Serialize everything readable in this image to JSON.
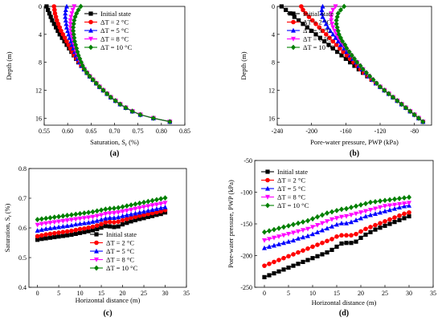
{
  "chart_data": [
    {
      "type": "line",
      "panel": "a",
      "caption": "(a)",
      "xlabel": "Saturation, S",
      "xlabel_sub": "r",
      "xlabel_tail": " (%)",
      "ylabel": "Depth (m)",
      "xlim": [
        0.55,
        0.85
      ],
      "ylim": [
        0,
        17
      ],
      "y_inverted": true,
      "x_ticks": [
        "0.55",
        "0.60",
        "0.65",
        "0.70",
        "0.75",
        "0.80",
        "0.85"
      ],
      "y_ticks": [
        "0",
        "4",
        "8",
        "12",
        "16"
      ],
      "legend_position": "top-right",
      "y": [
        0,
        0.5,
        1,
        1.5,
        2,
        2.5,
        3,
        3.5,
        4,
        4.5,
        5,
        5.5,
        6,
        6.5,
        7,
        7.5,
        8,
        8.5,
        9,
        9.5,
        10,
        10.5,
        11,
        11.5,
        12,
        12.5,
        13,
        13.5,
        14,
        14.5,
        15,
        15.5,
        16,
        16.5
      ],
      "series": [
        {
          "name": "Initial state",
          "marker": "square",
          "color": "#000000",
          "values": [
            0.555,
            0.558,
            0.561,
            0.564,
            0.567,
            0.571,
            0.575,
            0.579,
            0.583,
            0.588,
            0.593,
            0.598,
            0.603,
            0.608,
            0.613,
            0.618,
            0.623,
            0.629,
            0.635,
            0.641,
            0.647,
            0.654,
            0.661,
            0.668,
            0.676,
            0.684,
            0.692,
            0.702,
            0.712,
            0.724,
            0.738,
            0.755,
            0.783,
            0.818
          ]
        },
        {
          "name": "ΔT = 2 °C",
          "marker": "circle",
          "color": "#ff0000",
          "values": [
            0.571,
            0.572,
            0.573,
            0.575,
            0.577,
            0.58,
            0.583,
            0.586,
            0.59,
            0.594,
            0.598,
            0.602,
            0.606,
            0.61,
            0.614,
            0.619,
            0.624,
            0.629,
            0.635,
            0.641,
            0.647,
            0.654,
            0.661,
            0.668,
            0.676,
            0.684,
            0.692,
            0.702,
            0.712,
            0.724,
            0.738,
            0.755,
            0.783,
            0.818
          ]
        },
        {
          "name": "ΔT = 5 °C",
          "marker": "triangle-up",
          "color": "#0000ff",
          "values": [
            0.598,
            0.596,
            0.595,
            0.595,
            0.596,
            0.597,
            0.598,
            0.6,
            0.602,
            0.604,
            0.607,
            0.609,
            0.612,
            0.615,
            0.618,
            0.621,
            0.625,
            0.63,
            0.635,
            0.641,
            0.647,
            0.654,
            0.661,
            0.668,
            0.676,
            0.684,
            0.692,
            0.702,
            0.712,
            0.724,
            0.738,
            0.755,
            0.783,
            0.818
          ]
        },
        {
          "name": "ΔT = 8 °C",
          "marker": "triangle-down",
          "color": "#ff00ff",
          "values": [
            0.614,
            0.611,
            0.609,
            0.607,
            0.606,
            0.606,
            0.606,
            0.607,
            0.608,
            0.61,
            0.612,
            0.614,
            0.616,
            0.618,
            0.621,
            0.624,
            0.627,
            0.631,
            0.636,
            0.641,
            0.647,
            0.654,
            0.661,
            0.668,
            0.676,
            0.684,
            0.692,
            0.702,
            0.712,
            0.724,
            0.738,
            0.755,
            0.783,
            0.818
          ]
        },
        {
          "name": "ΔT = 10 °C",
          "marker": "diamond",
          "color": "#008000",
          "values": [
            0.628,
            0.623,
            0.619,
            0.616,
            0.614,
            0.613,
            0.612,
            0.612,
            0.613,
            0.614,
            0.615,
            0.617,
            0.619,
            0.621,
            0.623,
            0.626,
            0.629,
            0.632,
            0.636,
            0.641,
            0.647,
            0.654,
            0.661,
            0.668,
            0.676,
            0.684,
            0.692,
            0.702,
            0.712,
            0.724,
            0.738,
            0.755,
            0.783,
            0.818
          ]
        }
      ]
    },
    {
      "type": "line",
      "panel": "b",
      "caption": "(b)",
      "xlabel": "Pore-water pressure, PWP (kPa)",
      "ylabel": "Depth (m)",
      "xlim": [
        -240,
        -60
      ],
      "ylim": [
        0,
        17
      ],
      "y_inverted": true,
      "x_ticks": [
        "-240",
        "-200",
        "-160",
        "-120",
        "-80"
      ],
      "x_tick_values": [
        -240,
        -200,
        -160,
        -120,
        -80
      ],
      "y_ticks": [
        "0",
        "4",
        "8",
        "12",
        "16"
      ],
      "legend_position": "top-right",
      "y": [
        0,
        0.5,
        1,
        1.5,
        2,
        2.5,
        3,
        3.5,
        4,
        4.5,
        5,
        5.5,
        6,
        6.5,
        7,
        7.5,
        8,
        8.5,
        9,
        9.5,
        10,
        10.5,
        11,
        11.5,
        12,
        12.5,
        13,
        13.5,
        14,
        14.5,
        15,
        15.5,
        16,
        16.5
      ],
      "series": [
        {
          "name": "Initial state",
          "marker": "square",
          "color": "#000000",
          "values": [
            -235,
            -230,
            -225,
            -220,
            -215,
            -210,
            -205,
            -200,
            -195,
            -190,
            -185,
            -180,
            -175,
            -170,
            -165,
            -160,
            -155,
            -150,
            -145,
            -140,
            -135,
            -130,
            -125,
            -120,
            -115,
            -110,
            -105,
            -100,
            -95,
            -90,
            -85,
            -80,
            -75,
            -70
          ]
        },
        {
          "name": "ΔT = 2 °C",
          "marker": "circle",
          "color": "#ff0000",
          "values": [
            -212,
            -210,
            -207,
            -203,
            -199,
            -195,
            -191,
            -187,
            -183,
            -179,
            -175,
            -171,
            -167,
            -163,
            -159,
            -155,
            -151,
            -147,
            -143,
            -139,
            -134,
            -130,
            -125,
            -120,
            -115,
            -110,
            -105,
            -100,
            -95,
            -90,
            -85,
            -80,
            -75,
            -70
          ]
        },
        {
          "name": "ΔT = 5 °C",
          "marker": "triangle-up",
          "color": "#0000ff",
          "values": [
            -187,
            -188,
            -188,
            -187,
            -185,
            -183,
            -181,
            -178,
            -175,
            -172,
            -169,
            -166,
            -162,
            -159,
            -155,
            -152,
            -148,
            -145,
            -141,
            -137,
            -133,
            -129,
            -125,
            -120,
            -115,
            -110,
            -105,
            -100,
            -95,
            -90,
            -85,
            -80,
            -75,
            -70
          ]
        },
        {
          "name": "ΔT = 8 °C",
          "marker": "triangle-down",
          "color": "#ff00ff",
          "values": [
            -172,
            -175,
            -177,
            -177,
            -177,
            -176,
            -175,
            -173,
            -171,
            -169,
            -166,
            -163,
            -160,
            -157,
            -154,
            -151,
            -147,
            -144,
            -140,
            -137,
            -133,
            -129,
            -125,
            -120,
            -115,
            -110,
            -105,
            -100,
            -95,
            -90,
            -85,
            -80,
            -75,
            -70
          ]
        },
        {
          "name": "ΔT = 10 °C",
          "marker": "diamond",
          "color": "#008000",
          "values": [
            -162,
            -166,
            -169,
            -170,
            -171,
            -171,
            -170,
            -169,
            -168,
            -166,
            -164,
            -161,
            -159,
            -156,
            -153,
            -150,
            -147,
            -143,
            -140,
            -136,
            -132,
            -128,
            -124,
            -120,
            -115,
            -110,
            -105,
            -100,
            -95,
            -90,
            -85,
            -80,
            -75,
            -70
          ]
        }
      ]
    },
    {
      "type": "line",
      "panel": "c",
      "caption": "(c)",
      "xlabel": "Horizontal distance (m)",
      "ylabel": "Saturation, S",
      "ylabel_sub": "r",
      "ylabel_tail": " (%)",
      "xlim": [
        -2,
        35
      ],
      "ylim": [
        0.4,
        0.8
      ],
      "x_ticks": [
        "0",
        "5",
        "10",
        "15",
        "20",
        "25",
        "30",
        "35"
      ],
      "x_tick_values": [
        0,
        5,
        10,
        15,
        20,
        25,
        30,
        35
      ],
      "y_ticks": [
        "0.4",
        "0.5",
        "0.6",
        "0.7",
        "0.8"
      ],
      "y_tick_values": [
        0.4,
        0.5,
        0.6,
        0.7,
        0.8
      ],
      "legend_position": "bottom-right",
      "x": [
        0,
        1,
        2,
        3,
        4,
        5,
        6,
        7,
        8,
        9,
        10,
        11,
        12,
        13,
        14,
        15,
        16,
        17,
        18,
        19,
        20,
        21,
        22,
        23,
        24,
        25,
        26,
        27,
        28,
        29,
        30
      ],
      "series": [
        {
          "name": "Initial state",
          "marker": "square",
          "color": "#000000",
          "values": [
            0.56,
            0.563,
            0.565,
            0.567,
            0.569,
            0.571,
            0.573,
            0.575,
            0.577,
            0.58,
            0.583,
            0.586,
            0.589,
            0.592,
            0.596,
            0.601,
            0.606,
            0.605,
            0.603,
            0.605,
            0.612,
            0.617,
            0.622,
            0.626,
            0.63,
            0.633,
            0.637,
            0.64,
            0.644,
            0.647,
            0.652
          ]
        },
        {
          "name": "ΔT = 2 °C",
          "marker": "circle",
          "color": "#ff0000",
          "values": [
            0.572,
            0.575,
            0.578,
            0.58,
            0.582,
            0.584,
            0.586,
            0.588,
            0.59,
            0.593,
            0.596,
            0.598,
            0.601,
            0.604,
            0.608,
            0.613,
            0.619,
            0.62,
            0.619,
            0.621,
            0.626,
            0.63,
            0.634,
            0.637,
            0.641,
            0.644,
            0.647,
            0.65,
            0.653,
            0.656,
            0.66
          ]
        },
        {
          "name": "ΔT = 5 °C",
          "marker": "triangle-up",
          "color": "#0000ff",
          "values": [
            0.591,
            0.594,
            0.597,
            0.599,
            0.601,
            0.603,
            0.605,
            0.607,
            0.609,
            0.612,
            0.614,
            0.616,
            0.618,
            0.621,
            0.624,
            0.628,
            0.632,
            0.634,
            0.634,
            0.636,
            0.64,
            0.643,
            0.646,
            0.649,
            0.652,
            0.655,
            0.658,
            0.661,
            0.664,
            0.667,
            0.67
          ]
        },
        {
          "name": "ΔT = 8 °C",
          "marker": "triangle-down",
          "color": "#ff00ff",
          "values": [
            0.61,
            0.613,
            0.615,
            0.617,
            0.619,
            0.621,
            0.623,
            0.625,
            0.627,
            0.629,
            0.631,
            0.633,
            0.635,
            0.637,
            0.64,
            0.643,
            0.647,
            0.649,
            0.65,
            0.652,
            0.655,
            0.658,
            0.661,
            0.664,
            0.667,
            0.67,
            0.673,
            0.676,
            0.678,
            0.681,
            0.684
          ]
        },
        {
          "name": "ΔT = 10 °C",
          "marker": "diamond",
          "color": "#008000",
          "values": [
            0.628,
            0.63,
            0.632,
            0.634,
            0.636,
            0.638,
            0.64,
            0.642,
            0.644,
            0.646,
            0.648,
            0.65,
            0.652,
            0.654,
            0.657,
            0.66,
            0.663,
            0.665,
            0.666,
            0.668,
            0.671,
            0.674,
            0.677,
            0.68,
            0.683,
            0.686,
            0.689,
            0.692,
            0.695,
            0.698,
            0.701
          ]
        }
      ]
    },
    {
      "type": "line",
      "panel": "d",
      "caption": "(d)",
      "xlabel": "Horizontal distance (m)",
      "ylabel": "Pore-water pressure, PWP (kPa)",
      "xlim": [
        -2,
        35
      ],
      "ylim": [
        -250,
        -50
      ],
      "x_ticks": [
        "0",
        "5",
        "10",
        "15",
        "20",
        "25",
        "30",
        "35"
      ],
      "x_tick_values": [
        0,
        5,
        10,
        15,
        20,
        25,
        30,
        35
      ],
      "y_ticks": [
        "-250",
        "-200",
        "-150",
        "-100",
        "-50"
      ],
      "y_tick_values": [
        -250,
        -200,
        -150,
        -100,
        -50
      ],
      "legend_position": "top-left",
      "x": [
        0,
        1,
        2,
        3,
        4,
        5,
        6,
        7,
        8,
        9,
        10,
        11,
        12,
        13,
        14,
        15,
        16,
        17,
        18,
        19,
        20,
        21,
        22,
        23,
        24,
        25,
        26,
        27,
        28,
        29,
        30
      ],
      "series": [
        {
          "name": "Initial state",
          "marker": "square",
          "color": "#000000",
          "values": [
            -234,
            -231,
            -228,
            -225,
            -222,
            -219,
            -216,
            -213,
            -210,
            -207,
            -204,
            -201,
            -198,
            -195,
            -191,
            -186,
            -181,
            -180,
            -180,
            -178,
            -172,
            -167,
            -163,
            -159,
            -156,
            -153,
            -150,
            -147,
            -144,
            -141,
            -138
          ]
        },
        {
          "name": "ΔT = 2 °C",
          "marker": "circle",
          "color": "#ff0000",
          "values": [
            -216,
            -213,
            -210,
            -207,
            -204,
            -201,
            -198,
            -195,
            -192,
            -189,
            -186,
            -183,
            -180,
            -177,
            -174,
            -170,
            -168,
            -168,
            -168,
            -166,
            -162,
            -158,
            -155,
            -152,
            -149,
            -146,
            -143,
            -140,
            -137,
            -134,
            -132
          ]
        },
        {
          "name": "ΔT = 5 °C",
          "marker": "triangle-up",
          "color": "#0000ff",
          "values": [
            -188,
            -186,
            -184,
            -182,
            -180,
            -178,
            -176,
            -173,
            -171,
            -169,
            -166,
            -163,
            -160,
            -157,
            -154,
            -151,
            -149,
            -149,
            -147,
            -144,
            -141,
            -138,
            -136,
            -134,
            -132,
            -130,
            -128,
            -126,
            -124,
            -122,
            -121
          ]
        },
        {
          "name": "ΔT = 8 °C",
          "marker": "triangle-down",
          "color": "#ff00ff",
          "values": [
            -176,
            -174,
            -172,
            -170,
            -168,
            -166,
            -164,
            -162,
            -160,
            -158,
            -155,
            -152,
            -149,
            -146,
            -143,
            -141,
            -139,
            -138,
            -136,
            -134,
            -132,
            -130,
            -128,
            -126,
            -124,
            -122,
            -121,
            -120,
            -119,
            -118,
            -117
          ]
        },
        {
          "name": "ΔT = 10 °C",
          "marker": "diamond",
          "color": "#008000",
          "values": [
            -163,
            -161,
            -159,
            -157,
            -155,
            -153,
            -151,
            -149,
            -147,
            -145,
            -142,
            -139,
            -136,
            -133,
            -131,
            -129,
            -127,
            -126,
            -124,
            -122,
            -120,
            -118,
            -116,
            -115,
            -114,
            -113,
            -112,
            -111,
            -110,
            -109,
            -108
          ]
        }
      ]
    }
  ]
}
